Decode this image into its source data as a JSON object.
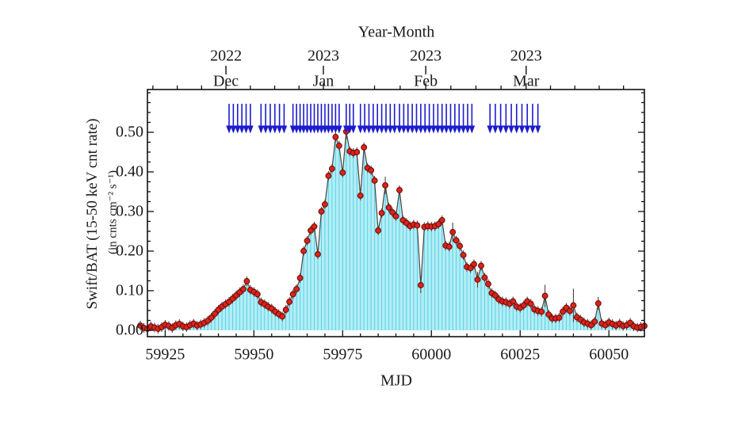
{
  "page": {
    "background": "#ffffff"
  },
  "chart_data": {
    "type": "line",
    "title_top": "Year-Month",
    "xlabel": "MJD",
    "ylabel_line1": "Swift/BAT (15-50 keV cnt rate)",
    "ylabel_line2": "(in cnts cm⁻² s⁻¹)",
    "xlim": [
      59920,
      60060
    ],
    "ylim": [
      -0.016,
      0.608
    ],
    "x_major_ticks": [
      59925,
      59950,
      59975,
      60000,
      60025,
      60050
    ],
    "x_minor_step": 5,
    "y_major_ticks": [
      0.0,
      0.1,
      0.2,
      0.3,
      0.4,
      0.5
    ],
    "y_minor_step": 0.025,
    "top_axis": {
      "years": [
        "2022",
        "2023",
        "2023",
        "2023"
      ],
      "months": [
        "Dec",
        "Jan",
        "Feb",
        "Mar"
      ],
      "fractions": [
        0.158,
        0.354,
        0.56,
        0.762
      ],
      "minors_between": 3,
      "lead_minors": 3,
      "trail_minors": 4
    },
    "series": {
      "name": "Swift/BAT 15-50 keV count rate",
      "x_start": 59918,
      "x_step": 1,
      "y": [
        0.012,
        0.006,
        0.004,
        0.01,
        0.007,
        0.004,
        0.008,
        0.014,
        0.011,
        0.006,
        0.013,
        0.016,
        0.01,
        0.008,
        0.013,
        0.017,
        0.012,
        0.015,
        0.019,
        0.024,
        0.032,
        0.042,
        0.052,
        0.06,
        0.066,
        0.072,
        0.08,
        0.088,
        0.096,
        0.104,
        0.124,
        0.102,
        0.097,
        0.091,
        0.071,
        0.066,
        0.06,
        0.055,
        0.047,
        0.041,
        0.035,
        0.052,
        0.072,
        0.091,
        0.104,
        0.132,
        0.2,
        0.226,
        0.252,
        0.262,
        0.192,
        0.3,
        0.318,
        0.39,
        0.408,
        0.488,
        0.466,
        0.398,
        0.502,
        0.452,
        0.448,
        0.45,
        0.34,
        0.462,
        0.41,
        0.404,
        0.378,
        0.252,
        0.296,
        0.366,
        0.31,
        0.298,
        0.288,
        0.354,
        0.278,
        0.271,
        0.263,
        0.267,
        0.265,
        0.114,
        0.261,
        0.263,
        0.262,
        0.263,
        0.268,
        0.278,
        0.214,
        0.211,
        0.248,
        0.227,
        0.213,
        0.19,
        0.16,
        0.157,
        0.167,
        0.128,
        0.163,
        0.133,
        0.117,
        0.094,
        0.088,
        0.078,
        0.073,
        0.071,
        0.067,
        0.073,
        0.06,
        0.057,
        0.063,
        0.073,
        0.067,
        0.053,
        0.049,
        0.047,
        0.087,
        0.04,
        0.03,
        0.03,
        0.032,
        0.047,
        0.057,
        0.049,
        0.063,
        0.033,
        0.027,
        0.02,
        0.017,
        0.013,
        0.022,
        0.068,
        0.017,
        0.013,
        0.02,
        0.016,
        0.012,
        0.017,
        0.011,
        0.013,
        0.019,
        0.01,
        0.007,
        0.009,
        0.011
      ]
    },
    "default_err": 0.012,
    "err_overrides": {
      "59976": 0.02,
      "59987": 0.022,
      "59997": 0.02,
      "60006": 0.024,
      "60013": 0.02,
      "60032": 0.028,
      "60040": 0.042,
      "60047": 0.016
    },
    "upper_limit_arrows": {
      "y_shaft_top": 0.572,
      "y_head_top": 0.517,
      "y_tip": 0.497,
      "mjd": [
        59943,
        59944.2,
        59945.4,
        59946.6,
        59947.8,
        59949,
        59952,
        59953.3,
        59954.6,
        59955.9,
        59957.2,
        59958.5,
        59961,
        59962,
        59963,
        59964,
        59965,
        59966,
        59967,
        59968,
        59969,
        59970,
        59971,
        59972,
        59973,
        59974,
        59976,
        59977,
        59978,
        59980,
        59981.2,
        59982.4,
        59983.6,
        59984.8,
        59986,
        59987.2,
        59988.4,
        59989.6,
        59991,
        59992.2,
        59993.4,
        59994.6,
        59995.8,
        59997,
        59998.2,
        59999.4,
        60000.6,
        60001.8,
        60003,
        60004.2,
        60005.4,
        60006.6,
        60007.8,
        60009,
        60010.2,
        60011.4,
        60016.5,
        60018,
        60019.5,
        60021,
        60022.5,
        60024,
        60025.5,
        60027,
        60028.5,
        60030
      ]
    },
    "colors": {
      "marker_fill": "#de2318",
      "marker_edge": "#6e0d0d",
      "line": "#4c4340",
      "error_bar": "#4c4340",
      "area_fill": "#b4edf6",
      "area_stripe": "#55d3e4",
      "arrow": "#1c1ccd",
      "axis": "#111111",
      "text": "#1a1a1a"
    },
    "legend": null,
    "grid": false
  }
}
